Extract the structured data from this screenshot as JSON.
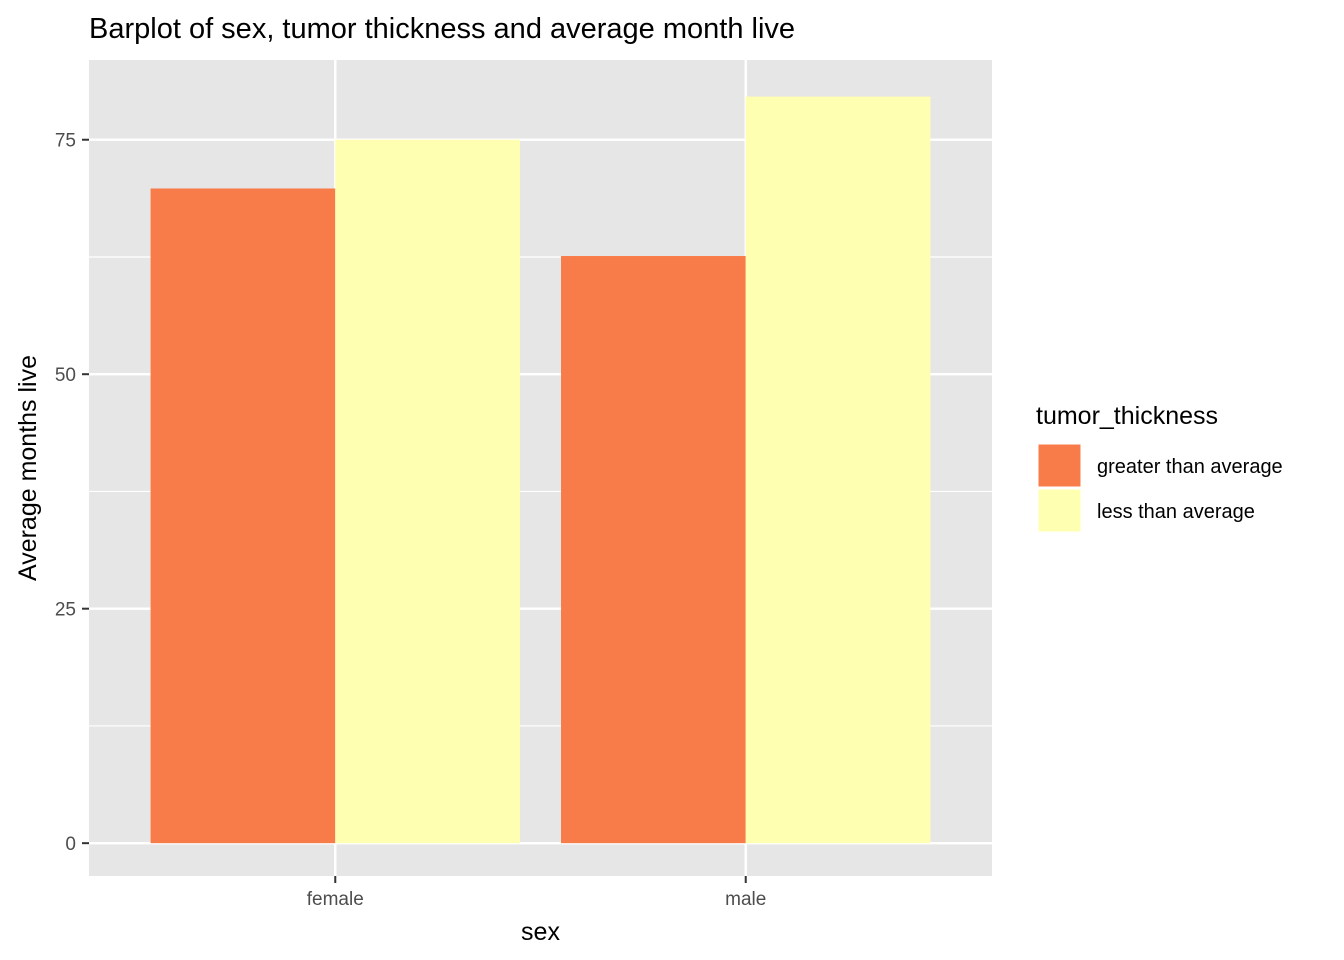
{
  "chart_data": {
    "type": "bar",
    "title": "Barplot of sex, tumor thickness and average month live",
    "xlabel": "sex",
    "ylabel": "Average months live",
    "categories": [
      "female",
      "male"
    ],
    "series": [
      {
        "name": "greater than average",
        "values": [
          69.8,
          62.6
        ],
        "color": "#f87c4a"
      },
      {
        "name": "less than average",
        "values": [
          75.0,
          79.6
        ],
        "color": "#ffffb2"
      }
    ],
    "ylim": [
      -3.5,
      83.5
    ],
    "yticks": [
      0,
      25,
      50,
      75
    ],
    "yticks_minor": [
      12.5,
      37.5,
      62.5
    ],
    "grid": true,
    "panel_background": "#e6e6e6",
    "legend": {
      "title": "tumor_thickness",
      "placement": "right"
    }
  }
}
